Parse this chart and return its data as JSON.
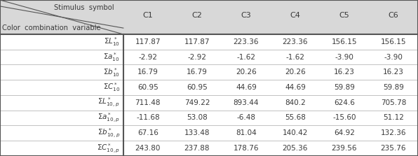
{
  "header_row": [
    "",
    "C1",
    "C2",
    "C3",
    "C4",
    "C5",
    "C6"
  ],
  "table_data": [
    [
      "117.87",
      "117.87",
      "223.36",
      "223.36",
      "156.15",
      "156.15"
    ],
    [
      "-2.92",
      "-2.92",
      "-1.62",
      "-1.62",
      "-3.90",
      "-3.90"
    ],
    [
      "16.79",
      "16.79",
      "20.26",
      "20.26",
      "16.23",
      "16.23"
    ],
    [
      "60.95",
      "60.95",
      "44.69",
      "44.69",
      "59.89",
      "59.89"
    ],
    [
      "711.48",
      "749.22",
      "893.44",
      "840.2",
      "624.6",
      "705.78"
    ],
    [
      "-11.68",
      "53.08",
      "-6.48",
      "55.68",
      "-15.60",
      "51.12"
    ],
    [
      "67.16",
      "133.48",
      "81.04",
      "140.42",
      "64.92",
      "132.36"
    ],
    [
      "243.80",
      "237.88",
      "178.76",
      "205.36",
      "239.56",
      "235.76"
    ]
  ],
  "col_header_label": "Stimulus  symbol",
  "row_header_label": "Color  combination  variable",
  "bg_header": "#d8d8d8",
  "bg_white": "#ffffff",
  "text_color": "#3a3a3a",
  "thick_line_color": "#555555",
  "thin_line_color": "#aaaaaa",
  "figsize": [
    5.96,
    2.23
  ],
  "dpi": 100
}
